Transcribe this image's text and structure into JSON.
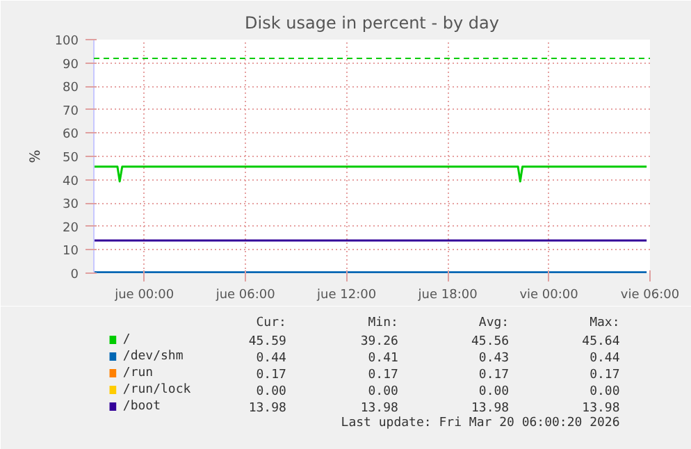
{
  "chart_data": {
    "type": "line",
    "title": "Disk usage in percent - by day",
    "ylabel": "%",
    "xlim": [
      "2026-03-18T21:00",
      "2026-03-20T06:00"
    ],
    "xticks": [
      {
        "value": "2026-03-19T00:00",
        "label": "jue 00:00"
      },
      {
        "value": "2026-03-19T06:00",
        "label": "jue 06:00"
      },
      {
        "value": "2026-03-19T12:00",
        "label": "jue 12:00"
      },
      {
        "value": "2026-03-19T18:00",
        "label": "jue 18:00"
      },
      {
        "value": "2026-03-20T00:00",
        "label": "vie 00:00"
      },
      {
        "value": "2026-03-20T06:00",
        "label": "vie 06:00"
      }
    ],
    "ylim": [
      0,
      100
    ],
    "yticks": [
      0,
      10,
      20,
      30,
      40,
      50,
      60,
      70,
      80,
      90,
      100
    ],
    "grid": true,
    "legend": "bottom",
    "series": [
      {
        "name": "/",
        "color": "#00cc00",
        "x": [
          "2026-03-18T21:00",
          "2026-03-18T22:24",
          "2026-03-18T22:32",
          "2026-03-18T22:41",
          "2026-03-19T22:10",
          "2026-03-19T22:18",
          "2026-03-19T22:26",
          "2026-03-20T05:48"
        ],
        "values": [
          45.6,
          45.6,
          39.3,
          45.6,
          45.6,
          39.3,
          45.6,
          45.6
        ]
      },
      {
        "name": "/dev/shm",
        "color": "#0066b3",
        "x": [
          "2026-03-18T21:00",
          "2026-03-20T05:48"
        ],
        "values": [
          0.4,
          0.4
        ]
      },
      {
        "name": "/run",
        "color": "#ff8000"
      },
      {
        "name": "/run/lock",
        "color": "#ffcc00"
      },
      {
        "name": "/boot",
        "color": "#330099",
        "x": [
          "2026-03-18T21:00",
          "2026-03-20T05:48"
        ],
        "values": [
          14.0,
          14.0
        ]
      }
    ],
    "ref_lines": [
      {
        "axis": "y",
        "value": 92,
        "label": null,
        "color": "#00cc00",
        "line_style": "dashed"
      }
    ],
    "annotations": [
      "Cur:",
      "Min:",
      "Avg:",
      "Max:",
      "45.59",
      "39.26",
      "45.56",
      "45.64",
      "0.44",
      "0.41",
      "0.43",
      "0.44",
      "0.17",
      "0.17",
      "0.17",
      "0.17",
      "0.00",
      "0.00",
      "0.00",
      "0.00",
      "13.98",
      "13.98",
      "13.98",
      "13.98",
      "Last update: Fri Mar 20 06:00:20 2026"
    ]
  }
}
